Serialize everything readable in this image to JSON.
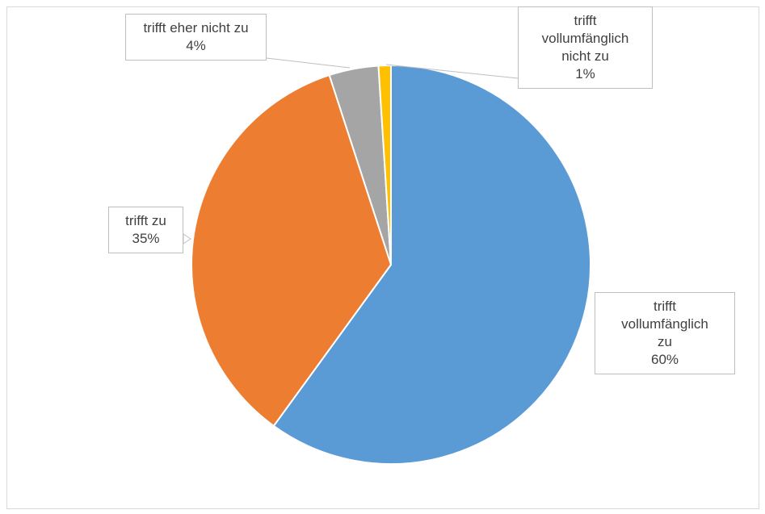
{
  "chart_data": {
    "type": "pie",
    "categories": [
      "trifft vollumfänglich zu",
      "trifft zu",
      "trifft eher nicht zu",
      "trifft vollumfänglich nicht zu"
    ],
    "values": [
      60,
      35,
      4,
      1
    ],
    "value_labels": [
      "60%",
      "35%",
      "4%",
      "1%"
    ],
    "colors": [
      "#5b9bd5",
      "#ed7d31",
      "#a5a5a5",
      "#ffc000"
    ]
  }
}
